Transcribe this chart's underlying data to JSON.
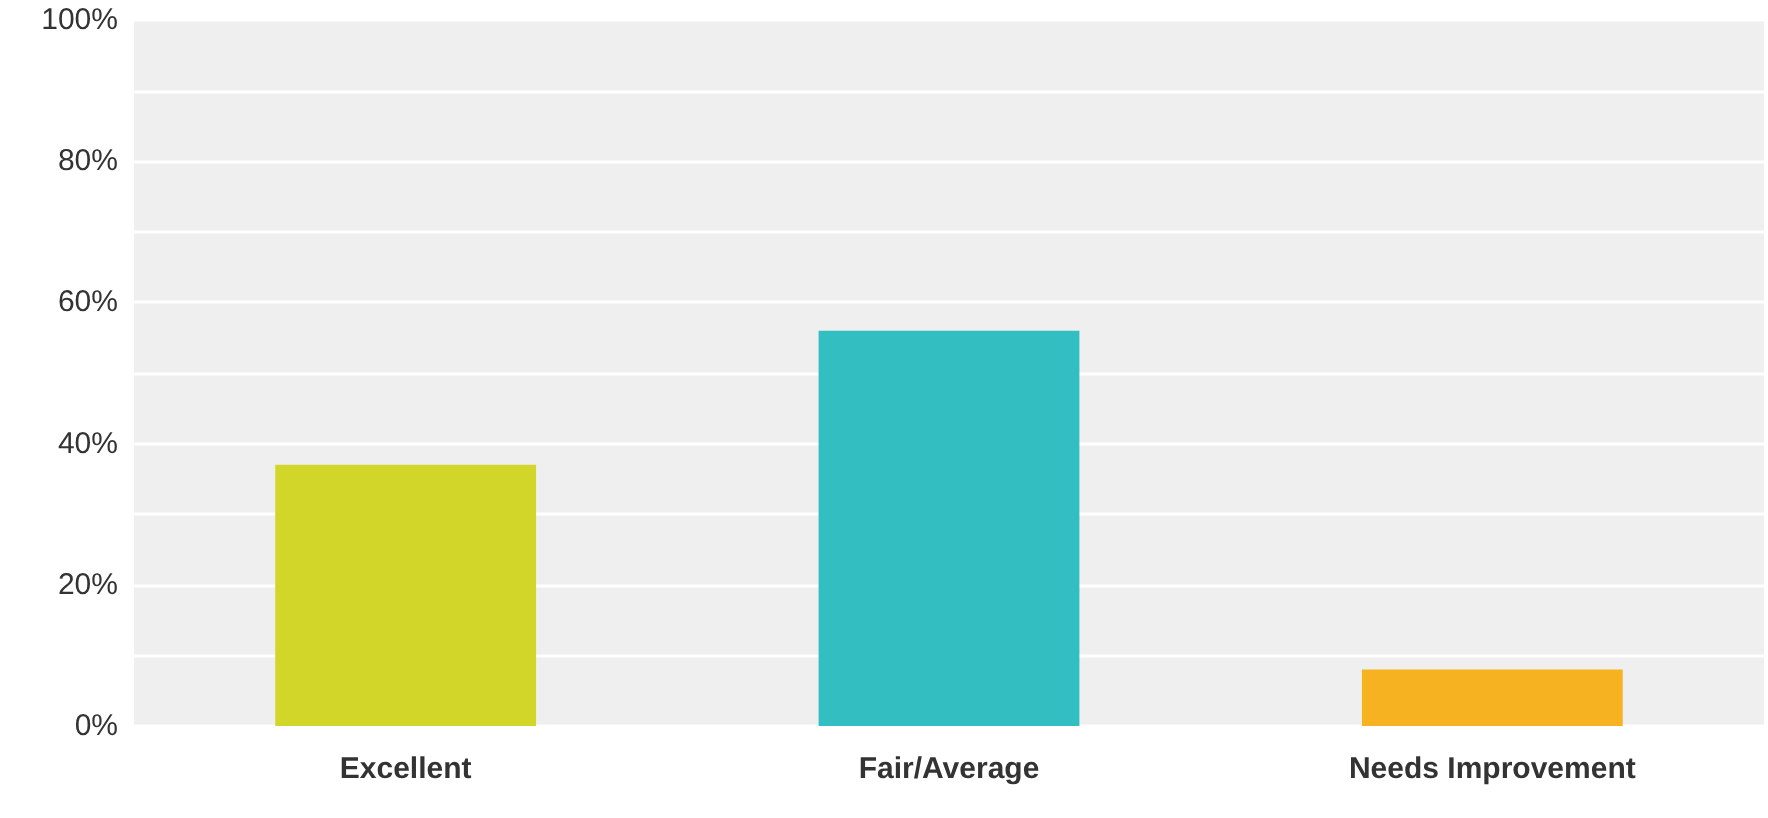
{
  "chart_data": {
    "type": "bar",
    "categories": [
      "Excellent",
      "Fair/Average",
      "Needs Improvement"
    ],
    "values": [
      37,
      56,
      8
    ],
    "colors": [
      "#d1d628",
      "#33bfc1",
      "#f6b221"
    ],
    "ylim": [
      0,
      100
    ],
    "yticks": [
      {
        "value": 0,
        "label": "0%"
      },
      {
        "value": 10,
        "label": null
      },
      {
        "value": 20,
        "label": "20%"
      },
      {
        "value": 30,
        "label": null
      },
      {
        "value": 40,
        "label": "40%"
      },
      {
        "value": 50,
        "label": null
      },
      {
        "value": 60,
        "label": "60%"
      },
      {
        "value": 70,
        "label": null
      },
      {
        "value": 80,
        "label": "80%"
      },
      {
        "value": 90,
        "label": null
      },
      {
        "value": 100,
        "label": "100%"
      }
    ],
    "grid": true
  }
}
